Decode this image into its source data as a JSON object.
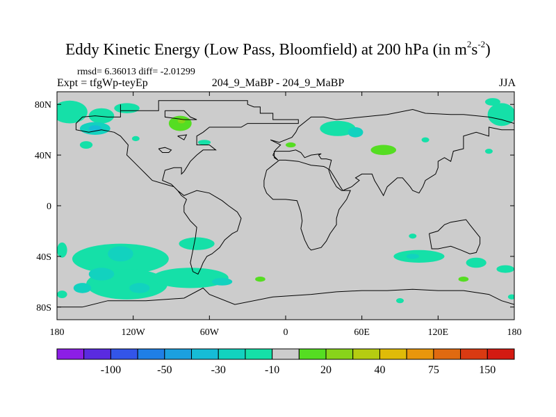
{
  "title_main": "Eddy Kinetic Energy (Low Pass, Bloomfield) at 200 hPa (in m",
  "title_sup1": "2",
  "title_mid": "s",
  "title_sup2": "-2",
  "title_end": ")",
  "stats": "rmsd= 6.36013 diff= -2.01299",
  "expt": "Expt = tfgWp-teyEp",
  "center_label": "204_9_MaBP - 204_9_MaBP",
  "season": "JJA",
  "chart_data": {
    "type": "heatmap",
    "projection": "cylindrical equidistant",
    "xlim": [
      -180,
      180
    ],
    "ylim": [
      -90,
      90
    ],
    "x_ticks": [
      {
        "value": -180,
        "label": "180"
      },
      {
        "value": -120,
        "label": "120W"
      },
      {
        "value": -60,
        "label": "60W"
      },
      {
        "value": 0,
        "label": "0"
      },
      {
        "value": 60,
        "label": "60E"
      },
      {
        "value": 120,
        "label": "120E"
      },
      {
        "value": 180,
        "label": "180"
      }
    ],
    "y_ticks": [
      {
        "value": 80,
        "label": "80N"
      },
      {
        "value": 40,
        "label": "40N"
      },
      {
        "value": 0,
        "label": "0"
      },
      {
        "value": -40,
        "label": "40S"
      },
      {
        "value": -80,
        "label": "80S"
      }
    ],
    "background_color": "#cccccc",
    "levels": [
      -150,
      -100,
      -75,
      -50,
      -40,
      -30,
      -20,
      -10,
      10,
      20,
      30,
      40,
      50,
      75,
      100,
      150
    ],
    "colorbar_labels": [
      {
        "level": -100,
        "label": "-100"
      },
      {
        "level": -50,
        "label": "-50"
      },
      {
        "level": -30,
        "label": "-30"
      },
      {
        "level": -10,
        "label": "-10"
      },
      {
        "level": 20,
        "label": "20"
      },
      {
        "level": 40,
        "label": "40"
      },
      {
        "level": 75,
        "label": "75"
      },
      {
        "level": 150,
        "label": "150"
      }
    ],
    "colors": [
      "#8c1ee6",
      "#5a2be0",
      "#3355e8",
      "#1f7fe6",
      "#1ba0df",
      "#16bcd6",
      "#12d2bf",
      "#15e0a8",
      "#cccccc",
      "#55dd22",
      "#88d41a",
      "#b5cc11",
      "#e0bb08",
      "#e8960c",
      "#e06a10",
      "#d93a12",
      "#d41a12"
    ],
    "anomaly_regions": [
      {
        "lon": -170,
        "lat": 74,
        "rlon": 14,
        "rlat": 9,
        "band": 7
      },
      {
        "lon": -145,
        "lat": 71,
        "rlon": 10,
        "rlat": 6,
        "band": 7
      },
      {
        "lon": -125,
        "lat": 77,
        "rlon": 10,
        "rlat": 4,
        "band": 7
      },
      {
        "lon": -150,
        "lat": 61,
        "rlon": 12,
        "rlat": 5,
        "band": 6
      },
      {
        "lon": -150,
        "lat": 61,
        "rlon": 5,
        "rlat": 2.5,
        "band": 5
      },
      {
        "lon": -157,
        "lat": 48,
        "rlon": 5,
        "rlat": 3,
        "band": 7
      },
      {
        "lon": -118,
        "lat": 53,
        "rlon": 3,
        "rlat": 2,
        "band": 7
      },
      {
        "lon": -83,
        "lat": 65,
        "rlon": 9,
        "rlat": 6,
        "band": 9
      },
      {
        "lon": -82,
        "lat": 67,
        "rlon": 3,
        "rlat": 2,
        "band": 10
      },
      {
        "lon": -64,
        "lat": 50,
        "rlon": 5,
        "rlat": 2,
        "band": 7
      },
      {
        "lon": 4,
        "lat": 48,
        "rlon": 4,
        "rlat": 2,
        "band": 9
      },
      {
        "lon": 41,
        "lat": 61,
        "rlon": 14,
        "rlat": 6,
        "band": 7
      },
      {
        "lon": 55,
        "lat": 58,
        "rlon": 6,
        "rlat": 4,
        "band": 6
      },
      {
        "lon": 77,
        "lat": 44,
        "rlon": 10,
        "rlat": 4,
        "band": 9
      },
      {
        "lon": 170,
        "lat": 72,
        "rlon": 11,
        "rlat": 9,
        "band": 7
      },
      {
        "lon": 163,
        "lat": 82,
        "rlon": 6,
        "rlat": 3,
        "band": 7
      },
      {
        "lon": 160,
        "lat": 43,
        "rlon": 3,
        "rlat": 2,
        "band": 7
      },
      {
        "lon": 110,
        "lat": 52,
        "rlon": 3,
        "rlat": 2,
        "band": 7
      },
      {
        "lon": -130,
        "lat": -42,
        "rlon": 38,
        "rlat": 12,
        "band": 7
      },
      {
        "lon": -125,
        "lat": -62,
        "rlon": 32,
        "rlat": 12,
        "band": 7
      },
      {
        "lon": -130,
        "lat": -38,
        "rlon": 10,
        "rlat": 6,
        "band": 6
      },
      {
        "lon": -145,
        "lat": -54,
        "rlon": 10,
        "rlat": 5,
        "band": 6
      },
      {
        "lon": -160,
        "lat": -65,
        "rlon": 7,
        "rlat": 4,
        "band": 6
      },
      {
        "lon": -115,
        "lat": -65,
        "rlon": 8,
        "rlat": 4,
        "band": 6
      },
      {
        "lon": -75,
        "lat": -57,
        "rlon": 30,
        "rlat": 8,
        "band": 7
      },
      {
        "lon": -50,
        "lat": -60,
        "rlon": 8,
        "rlat": 3,
        "band": 6
      },
      {
        "lon": -70,
        "lat": -30,
        "rlon": 14,
        "rlat": 5,
        "band": 7
      },
      {
        "lon": -176,
        "lat": -35,
        "rlon": 4,
        "rlat": 6,
        "band": 7
      },
      {
        "lon": -176,
        "lat": -70,
        "rlon": 4,
        "rlat": 3,
        "band": 7
      },
      {
        "lon": 105,
        "lat": -40,
        "rlon": 20,
        "rlat": 5,
        "band": 7
      },
      {
        "lon": 100,
        "lat": -40,
        "rlon": 5,
        "rlat": 2,
        "band": 6
      },
      {
        "lon": 100,
        "lat": -24,
        "rlon": 3,
        "rlat": 2,
        "band": 7
      },
      {
        "lon": 150,
        "lat": -45,
        "rlon": 8,
        "rlat": 4,
        "band": 7
      },
      {
        "lon": 173,
        "lat": -50,
        "rlon": 7,
        "rlat": 3,
        "band": 7
      },
      {
        "lon": 178,
        "lat": -72,
        "rlon": 3,
        "rlat": 2,
        "band": 7
      },
      {
        "lon": -20,
        "lat": -58,
        "rlon": 4,
        "rlat": 2,
        "band": 9
      },
      {
        "lon": 140,
        "lat": -58,
        "rlon": 4,
        "rlat": 2,
        "band": 9
      },
      {
        "lon": 90,
        "lat": -75,
        "rlon": 3,
        "rlat": 2,
        "band": 7
      }
    ],
    "land_outlines": [
      [
        [
          -130,
          80
        ],
        [
          -130,
          75
        ],
        [
          -100,
          75
        ],
        [
          -100,
          83
        ],
        [
          -30,
          83
        ],
        [
          -30,
          80
        ],
        [
          -25,
          78
        ],
        [
          -20,
          78
        ],
        [
          -20,
          73
        ],
        [
          -10,
          73
        ],
        [
          -10,
          68
        ],
        [
          10,
          68
        ],
        [
          10,
          65
        ],
        [
          -30,
          65
        ],
        [
          -35,
          62
        ],
        [
          -60,
          62
        ],
        [
          -65,
          58
        ],
        [
          -70,
          55
        ],
        [
          -70,
          48
        ],
        [
          -60,
          48
        ],
        [
          -55,
          44
        ],
        [
          -65,
          44
        ],
        [
          -70,
          40
        ],
        [
          -75,
          35
        ],
        [
          -80,
          27
        ],
        [
          -82,
          25
        ],
        [
          -82,
          30
        ],
        [
          -88,
          30
        ],
        [
          -95,
          28
        ],
        [
          -97,
          20
        ],
        [
          -90,
          17
        ],
        [
          -85,
          12
        ],
        [
          -80,
          8
        ],
        [
          -75,
          10
        ],
        [
          -70,
          12
        ],
        [
          -60,
          10
        ],
        [
          -50,
          4
        ],
        [
          -45,
          0
        ],
        [
          -38,
          -5
        ],
        [
          -35,
          -10
        ],
        [
          -38,
          -20
        ],
        [
          -42,
          -22
        ],
        [
          -48,
          -27
        ],
        [
          -52,
          -33
        ],
        [
          -58,
          -38
        ],
        [
          -62,
          -40
        ],
        [
          -65,
          -45
        ],
        [
          -67,
          -50
        ],
        [
          -69,
          -54
        ],
        [
          -73,
          -52
        ],
        [
          -75,
          -45
        ],
        [
          -73,
          -35
        ],
        [
          -71,
          -25
        ],
        [
          -70,
          -17
        ],
        [
          -75,
          -12
        ],
        [
          -80,
          -5
        ],
        [
          -80,
          0
        ],
        [
          -78,
          5
        ],
        [
          -82,
          8
        ],
        [
          -85,
          12
        ],
        [
          -88,
          15
        ],
        [
          -95,
          17
        ],
        [
          -105,
          20
        ],
        [
          -110,
          25
        ],
        [
          -115,
          30
        ],
        [
          -120,
          35
        ],
        [
          -125,
          40
        ],
        [
          -124,
          48
        ],
        [
          -130,
          55
        ],
        [
          -135,
          58
        ],
        [
          -145,
          60
        ],
        [
          -155,
          58
        ],
        [
          -165,
          60
        ],
        [
          -165,
          65
        ],
        [
          -160,
          70
        ],
        [
          -150,
          71
        ],
        [
          -140,
          70
        ],
        [
          -130,
          70
        ],
        [
          -130,
          80
        ]
      ],
      [
        [
          -95,
          75
        ],
        [
          -80,
          75
        ],
        [
          -75,
          70
        ],
        [
          -70,
          68
        ],
        [
          -80,
          68
        ],
        [
          -95,
          70
        ],
        [
          -95,
          75
        ]
      ],
      [
        [
          -85,
          55
        ],
        [
          -80,
          52
        ],
        [
          -78,
          56
        ],
        [
          -85,
          55
        ]
      ],
      [
        [
          -12,
          52
        ],
        [
          -5,
          50
        ],
        [
          0,
          52
        ],
        [
          5,
          54
        ],
        [
          8,
          58
        ],
        [
          10,
          62
        ],
        [
          20,
          70
        ],
        [
          30,
          70
        ],
        [
          40,
          68
        ],
        [
          60,
          70
        ],
        [
          80,
          72
        ],
        [
          100,
          76
        ],
        [
          110,
          73
        ],
        [
          130,
          72
        ],
        [
          140,
          72
        ],
        [
          160,
          70
        ],
        [
          170,
          68
        ],
        [
          180,
          65
        ],
        [
          180,
          60
        ],
        [
          170,
          60
        ],
        [
          160,
          62
        ],
        [
          160,
          55
        ],
        [
          150,
          58
        ],
        [
          140,
          55
        ],
        [
          140,
          45
        ],
        [
          132,
          43
        ],
        [
          130,
          35
        ],
        [
          125,
          38
        ],
        [
          120,
          35
        ],
        [
          120,
          30
        ],
        [
          118,
          25
        ],
        [
          110,
          20
        ],
        [
          108,
          15
        ],
        [
          105,
          10
        ],
        [
          100,
          12
        ],
        [
          98,
          15
        ],
        [
          92,
          22
        ],
        [
          88,
          22
        ],
        [
          80,
          15
        ],
        [
          77,
          8
        ],
        [
          73,
          15
        ],
        [
          70,
          20
        ],
        [
          68,
          25
        ],
        [
          60,
          25
        ],
        [
          55,
          22
        ],
        [
          58,
          20
        ],
        [
          52,
          15
        ],
        [
          45,
          12
        ],
        [
          43,
          15
        ],
        [
          40,
          20
        ],
        [
          35,
          28
        ],
        [
          32,
          30
        ],
        [
          30,
          31
        ],
        [
          20,
          32
        ],
        [
          10,
          35
        ],
        [
          0,
          36
        ],
        [
          -5,
          36
        ],
        [
          -10,
          32
        ],
        [
          -15,
          28
        ],
        [
          -17,
          20
        ],
        [
          -17,
          15
        ],
        [
          -15,
          10
        ],
        [
          -10,
          5
        ],
        [
          0,
          5
        ],
        [
          9,
          4
        ],
        [
          12,
          -5
        ],
        [
          13,
          -12
        ],
        [
          12,
          -18
        ],
        [
          15,
          -27
        ],
        [
          18,
          -33
        ],
        [
          20,
          -35
        ],
        [
          28,
          -33
        ],
        [
          32,
          -28
        ],
        [
          35,
          -22
        ],
        [
          40,
          -15
        ],
        [
          40,
          -10
        ],
        [
          42,
          -3
        ],
        [
          48,
          5
        ],
        [
          51,
          12
        ],
        [
          44,
          12
        ],
        [
          40,
          15
        ],
        [
          36,
          22
        ],
        [
          34,
          28
        ],
        [
          35,
          32
        ],
        [
          36,
          36
        ],
        [
          32,
          37
        ],
        [
          28,
          37
        ],
        [
          26,
          40
        ],
        [
          28,
          41
        ],
        [
          20,
          40
        ],
        [
          15,
          38
        ],
        [
          12,
          42
        ],
        [
          8,
          44
        ],
        [
          3,
          43
        ],
        [
          -2,
          43
        ],
        [
          -9,
          43
        ],
        [
          -9,
          38
        ],
        [
          -6,
          36
        ],
        [
          -10,
          40
        ],
        [
          -8,
          44
        ],
        [
          -4,
          48
        ],
        [
          -12,
          52
        ]
      ],
      [
        [
          -100,
          45
        ],
        [
          -97,
          42
        ],
        [
          -92,
          42
        ],
        [
          -90,
          44
        ],
        [
          -95,
          46
        ],
        [
          -100,
          45
        ]
      ],
      [
        [
          113,
          -22
        ],
        [
          115,
          -34
        ],
        [
          120,
          -34
        ],
        [
          130,
          -32
        ],
        [
          138,
          -35
        ],
        [
          145,
          -38
        ],
        [
          150,
          -37
        ],
        [
          153,
          -30
        ],
        [
          153,
          -25
        ],
        [
          145,
          -15
        ],
        [
          142,
          -11
        ],
        [
          136,
          -12
        ],
        [
          130,
          -13
        ],
        [
          125,
          -15
        ],
        [
          120,
          -20
        ],
        [
          113,
          -22
        ]
      ],
      [
        [
          -180,
          -80
        ],
        [
          -160,
          -80
        ],
        [
          -140,
          -75
        ],
        [
          -110,
          -75
        ],
        [
          -80,
          -73
        ],
        [
          -65,
          -65
        ],
        [
          -60,
          -70
        ],
        [
          -40,
          -78
        ],
        [
          -10,
          -72
        ],
        [
          20,
          -70
        ],
        [
          40,
          -68
        ],
        [
          60,
          -67
        ],
        [
          80,
          -67
        ],
        [
          100,
          -66
        ],
        [
          120,
          -67
        ],
        [
          140,
          -67
        ],
        [
          160,
          -70
        ],
        [
          170,
          -75
        ],
        [
          180,
          -78
        ]
      ]
    ]
  }
}
